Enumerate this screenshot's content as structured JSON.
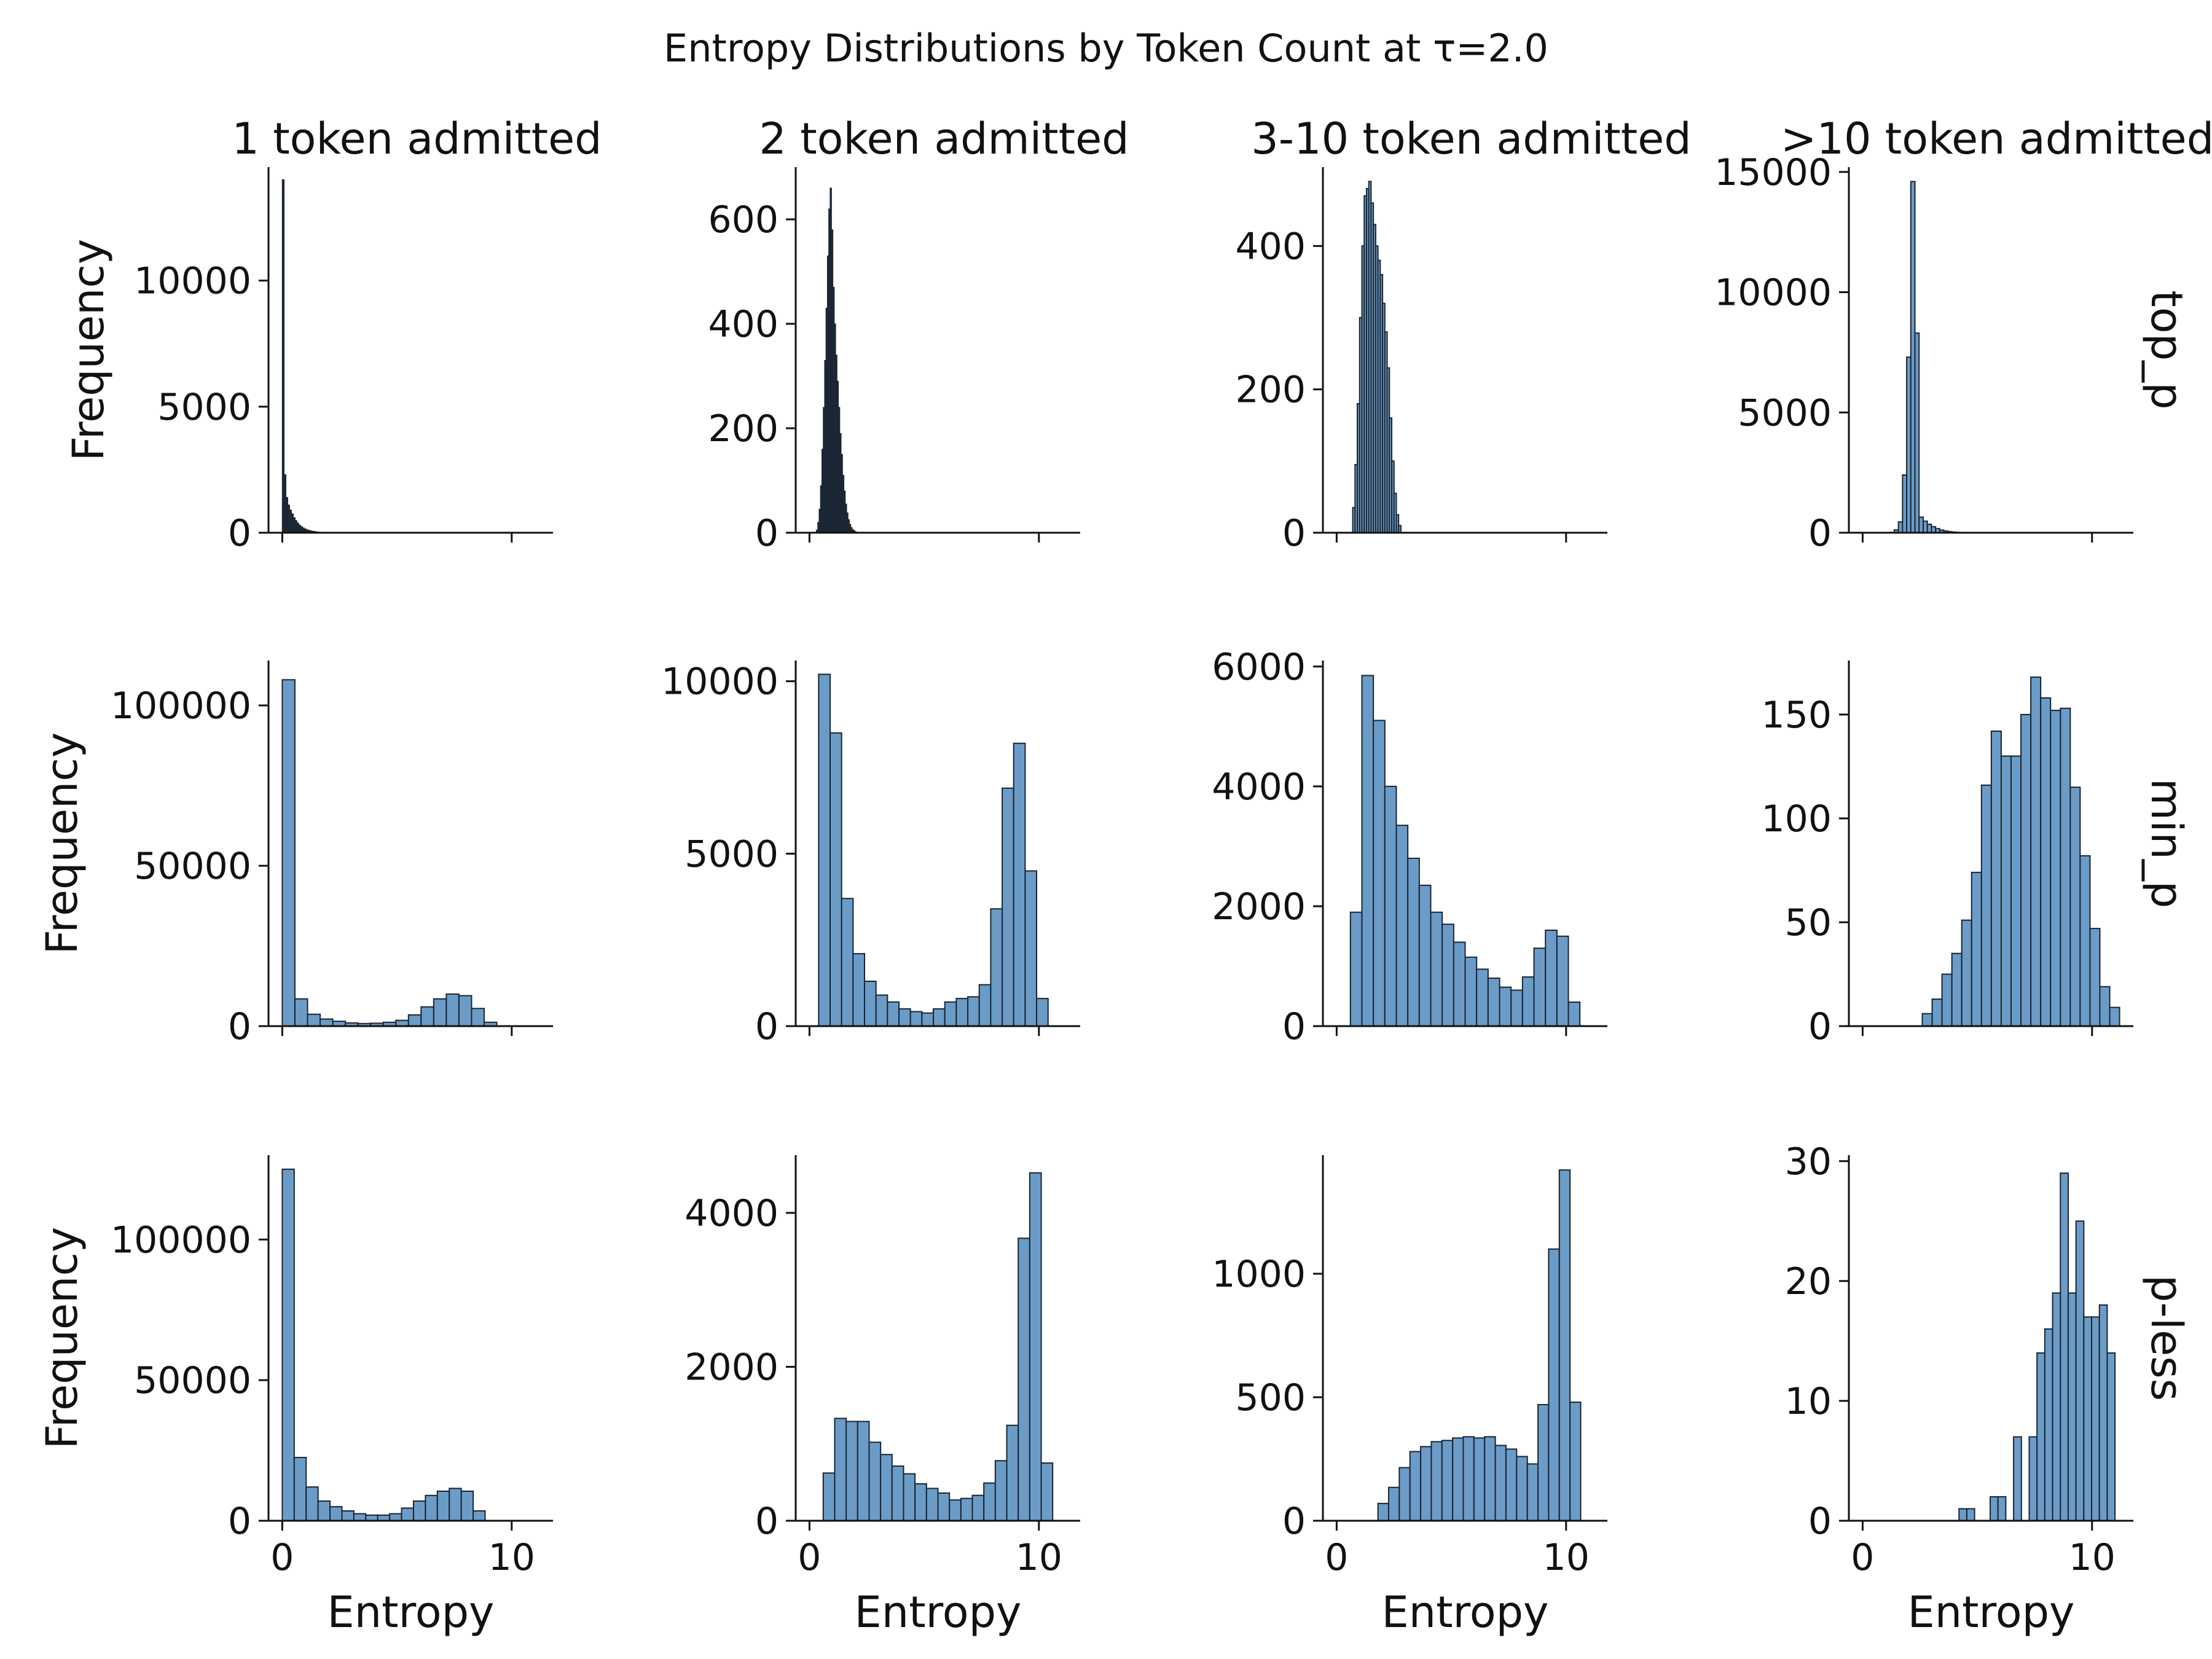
{
  "chart_data": {
    "type": "histogram-grid",
    "title": "Entropy Distributions by Token Count at τ=2.0",
    "column_titles": [
      "1 token admitted",
      "2 token admitted",
      "3-10 token admitted",
      ">10 token admitted"
    ],
    "row_labels": [
      "top_p",
      "min_p",
      "p-less"
    ],
    "ylabel": "Frequency",
    "xlabel": "Entropy",
    "x_ticks": [
      0,
      10
    ],
    "xlim": [
      -0.6,
      11.8
    ],
    "bar_color": "#6b9cc8",
    "dark_bar_color": "#1b2a3a",
    "edge_color": "#1a2430",
    "panels": [
      {
        "row": 0,
        "col": 0,
        "ylim": [
          0,
          14500
        ],
        "yticks": [
          0,
          5000,
          10000
        ],
        "dark": true,
        "bin_start": 0.0,
        "bin_width": 0.08,
        "values": [
          14000,
          2300,
          1400,
          1100,
          900,
          750,
          600,
          480,
          380,
          300,
          240,
          190,
          150,
          120,
          95,
          75,
          60,
          48,
          38,
          30,
          24,
          19,
          15,
          12,
          9,
          7,
          5,
          4,
          3,
          2,
          2,
          1,
          1,
          1,
          1
        ]
      },
      {
        "row": 0,
        "col": 1,
        "ylim": [
          0,
          700
        ],
        "yticks": [
          0,
          200,
          400,
          600
        ],
        "dark": true,
        "bin_start": 0.3,
        "bin_width": 0.06,
        "values": [
          5,
          20,
          45,
          90,
          160,
          240,
          330,
          430,
          530,
          620,
          660,
          580,
          470,
          400,
          340,
          290,
          240,
          190,
          150,
          110,
          80,
          55,
          38,
          25,
          16,
          10,
          6,
          4,
          2,
          1
        ]
      },
      {
        "row": 0,
        "col": 2,
        "ylim": [
          0,
          510
        ],
        "yticks": [
          0,
          200,
          400
        ],
        "dark": false,
        "bin_start": 0.7,
        "bin_width": 0.1,
        "values": [
          35,
          95,
          180,
          300,
          400,
          470,
          480,
          490,
          460,
          430,
          400,
          380,
          360,
          320,
          280,
          230,
          160,
          100,
          55,
          25,
          10
        ]
      },
      {
        "row": 0,
        "col": 3,
        "ylim": [
          0,
          15200
        ],
        "yticks": [
          0,
          5000,
          10000,
          15000
        ],
        "dark": false,
        "bin_start": 1.2,
        "bin_width": 0.18,
        "values": [
          15,
          120,
          450,
          2400,
          7300,
          14600,
          8300,
          650,
          480,
          350,
          250,
          170,
          110,
          70,
          45,
          25,
          15,
          10,
          5,
          3
        ]
      },
      {
        "row": 1,
        "col": 0,
        "ylim": [
          0,
          114000
        ],
        "yticks": [
          0,
          50000,
          100000
        ],
        "dark": false,
        "bin_start": 0.0,
        "bin_width": 0.55,
        "values": [
          108000,
          8500,
          3700,
          2200,
          1500,
          1000,
          800,
          900,
          1200,
          1800,
          3500,
          6000,
          8500,
          10000,
          9500,
          5500,
          1200
        ]
      },
      {
        "row": 1,
        "col": 1,
        "ylim": [
          0,
          10600
        ],
        "yticks": [
          0,
          5000,
          10000
        ],
        "dark": false,
        "bin_start": 0.4,
        "bin_width": 0.5,
        "values": [
          10200,
          8500,
          3700,
          2100,
          1300,
          900,
          700,
          500,
          420,
          380,
          500,
          700,
          800,
          850,
          1200,
          3400,
          6900,
          8200,
          4500,
          800
        ]
      },
      {
        "row": 1,
        "col": 2,
        "ylim": [
          0,
          6100
        ],
        "yticks": [
          0,
          2000,
          4000,
          6000
        ],
        "dark": false,
        "bin_start": 0.6,
        "bin_width": 0.5,
        "values": [
          1900,
          5850,
          5100,
          4000,
          3350,
          2800,
          2350,
          1900,
          1700,
          1400,
          1150,
          950,
          800,
          650,
          600,
          820,
          1300,
          1600,
          1500,
          400
        ]
      },
      {
        "row": 1,
        "col": 3,
        "ylim": [
          0,
          176
        ],
        "yticks": [
          0,
          50,
          100,
          150
        ],
        "dark": false,
        "bin_start": 2.6,
        "bin_width": 0.43,
        "values": [
          6,
          13,
          25,
          35,
          51,
          74,
          116,
          142,
          130,
          130,
          150,
          168,
          158,
          152,
          153,
          115,
          82,
          47,
          19,
          9
        ]
      },
      {
        "row": 2,
        "col": 0,
        "ylim": [
          0,
          130000
        ],
        "yticks": [
          0,
          50000,
          100000
        ],
        "dark": false,
        "bin_start": 0.0,
        "bin_width": 0.52,
        "values": [
          125000,
          22500,
          12000,
          7000,
          5000,
          3500,
          2500,
          2000,
          2000,
          2500,
          4500,
          7000,
          9000,
          10500,
          11500,
          10500,
          3500
        ]
      },
      {
        "row": 2,
        "col": 1,
        "ylim": [
          0,
          4750
        ],
        "yticks": [
          0,
          2000,
          4000
        ],
        "dark": false,
        "bin_start": 0.6,
        "bin_width": 0.5,
        "values": [
          620,
          1330,
          1290,
          1290,
          1020,
          860,
          710,
          610,
          480,
          420,
          360,
          270,
          290,
          330,
          490,
          780,
          1240,
          3670,
          4520,
          750
        ]
      },
      {
        "row": 2,
        "col": 2,
        "ylim": [
          0,
          1480
        ],
        "yticks": [
          0,
          500,
          1000
        ],
        "dark": false,
        "bin_start": 1.8,
        "bin_width": 0.465,
        "values": [
          70,
          135,
          215,
          280,
          300,
          320,
          325,
          335,
          340,
          335,
          340,
          305,
          290,
          260,
          230,
          470,
          1100,
          1420,
          480
        ]
      },
      {
        "row": 2,
        "col": 3,
        "ylim": [
          0,
          30.5
        ],
        "yticks": [
          0,
          10,
          20,
          30
        ],
        "dark": false,
        "bin_start": 4.2,
        "bin_width": 0.34,
        "values": [
          1,
          1,
          0,
          0,
          2,
          2,
          0,
          7,
          0,
          7,
          14,
          16,
          19,
          29,
          19,
          25,
          17,
          17,
          18,
          14
        ]
      }
    ]
  }
}
